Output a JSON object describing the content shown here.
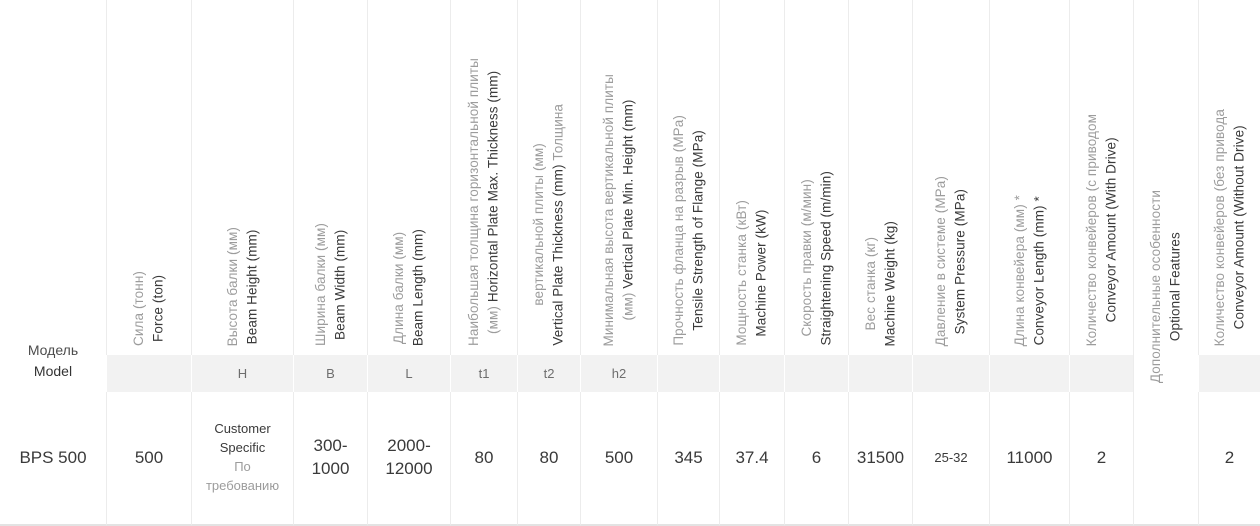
{
  "colors": {
    "ru_text": "#9c9c9c",
    "en_text": "#3a3a3a",
    "subheader_bg": "#f2f2f2",
    "column_border": "#ececec",
    "bottom_border": "#e3e3e3",
    "subheader_text": "#6e6e6e",
    "page_bg": "#ffffff"
  },
  "table": {
    "columns": [
      {
        "key": "model",
        "kind": "model",
        "ru": "Модель",
        "en": "Model"
      },
      {
        "key": "force",
        "kind": "rot",
        "sub": "",
        "lines": [
          [
            {
              "t": "Сила (тонн)",
              "c": "ru"
            }
          ],
          [
            {
              "t": "Force (ton)",
              "c": "en"
            }
          ]
        ]
      },
      {
        "key": "beam-height",
        "kind": "rot",
        "sub": "H",
        "lines": [
          [
            {
              "t": "Высота балки (мм)",
              "c": "ru"
            }
          ],
          [
            {
              "t": "Beam Height (mm)",
              "c": "en"
            }
          ]
        ]
      },
      {
        "key": "beam-width",
        "kind": "rot",
        "sub": "B",
        "lines": [
          [
            {
              "t": "Ширина балки (мм)",
              "c": "ru"
            }
          ],
          [
            {
              "t": "Beam Width (mm)",
              "c": "en"
            }
          ]
        ]
      },
      {
        "key": "beam-length",
        "kind": "rot",
        "sub": "L",
        "lines": [
          [
            {
              "t": "Длина балки (мм)",
              "c": "ru"
            }
          ],
          [
            {
              "t": "Beam Length (mm)",
              "c": "en"
            }
          ]
        ]
      },
      {
        "key": "horizontal-plate-max-thickness",
        "kind": "rot",
        "sub": "t1",
        "lines": [
          [
            {
              "t": "Наибольшая толщина горизонтальной плиты",
              "c": "ru"
            }
          ],
          [
            {
              "t": "(мм) ",
              "c": "ru"
            },
            {
              "t": "Horizontal Plate Max. Thickness (mm)",
              "c": "en"
            }
          ]
        ]
      },
      {
        "key": "vertical-plate-thickness",
        "kind": "rot",
        "sub": "t2",
        "lines": [
          [
            {
              "t": "вертикальной плиты (мм)",
              "c": "ru"
            }
          ],
          [
            {
              "t": "Vertical Plate Thickness (mm) ",
              "c": "en"
            },
            {
              "t": "Толщина",
              "c": "ru"
            }
          ]
        ]
      },
      {
        "key": "vertical-plate-min-height",
        "kind": "rot",
        "sub": "h2",
        "lines": [
          [
            {
              "t": "Минимальная высота вертикальной плиты",
              "c": "ru"
            }
          ],
          [
            {
              "t": "(мм) ",
              "c": "ru"
            },
            {
              "t": "Vertical Plate Min. Height (mm)",
              "c": "en"
            }
          ]
        ]
      },
      {
        "key": "tensile-strength",
        "kind": "rot",
        "sub": "",
        "lines": [
          [
            {
              "t": "Прочность фланца на разрыв (MPa)",
              "c": "ru"
            }
          ],
          [
            {
              "t": "Tensile Strength of Flange (MPa)",
              "c": "en"
            }
          ]
        ]
      },
      {
        "key": "machine-power",
        "kind": "rot",
        "sub": "",
        "lines": [
          [
            {
              "t": "Мощность станка (кВт)",
              "c": "ru"
            }
          ],
          [
            {
              "t": "Machine Power (kW)",
              "c": "en"
            }
          ]
        ]
      },
      {
        "key": "straightening-speed",
        "kind": "rot",
        "sub": "",
        "lines": [
          [
            {
              "t": "Скорость правки (м/мин)",
              "c": "ru"
            }
          ],
          [
            {
              "t": "Straightening Speed (m/min)",
              "c": "en"
            }
          ]
        ]
      },
      {
        "key": "machine-weight",
        "kind": "rot",
        "sub": "",
        "lines": [
          [
            {
              "t": "Вес станка (кг)",
              "c": "ru"
            }
          ],
          [
            {
              "t": "Machine Weight (kg)",
              "c": "en"
            }
          ]
        ]
      },
      {
        "key": "system-pressure",
        "kind": "rot",
        "sub": "",
        "lines": [
          [
            {
              "t": "Давление в системе (MPa)",
              "c": "ru"
            }
          ],
          [
            {
              "t": "System Pressure (MPa)",
              "c": "en"
            }
          ]
        ]
      },
      {
        "key": "conveyor-length",
        "kind": "rot",
        "sub": "",
        "lines": [
          [
            {
              "t": "Длина конвейера (мм) *",
              "c": "ru"
            }
          ],
          [
            {
              "t": "Conveyor Length (mm) *",
              "c": "en"
            }
          ]
        ]
      },
      {
        "key": "conveyor-amount-with-drive",
        "kind": "rot",
        "sub": "",
        "lines": [
          [
            {
              "t": "Количество конвейеров (с приводом",
              "c": "ru"
            }
          ],
          [
            {
              "t": "Conveyor Amount (With Drive)",
              "c": "en"
            }
          ]
        ]
      },
      {
        "key": "optional-features",
        "kind": "rot-span",
        "lines": [
          [
            {
              "t": "Дополнительные особенности",
              "c": "ru"
            }
          ],
          [
            {
              "t": "Optional Features",
              "c": "en"
            }
          ]
        ]
      },
      {
        "key": "conveyor-amount-without-drive",
        "kind": "rot",
        "sub": "",
        "lines": [
          [
            {
              "t": "Количество конвейеров (без привода",
              "c": "ru"
            }
          ],
          [
            {
              "t": "Conveyor Amount (Without Drive)",
              "c": "en"
            }
          ]
        ]
      }
    ],
    "rows": [
      {
        "cells": [
          {
            "text": "BPS 500"
          },
          {
            "text": "500"
          },
          {
            "lines": [
              {
                "t": "Customer Specific",
                "c": "en"
              },
              {
                "t": "По требованию",
                "c": "ru"
              }
            ]
          },
          {
            "text": "300-1000"
          },
          {
            "text": "2000-12000"
          },
          {
            "text": "80"
          },
          {
            "text": "80"
          },
          {
            "text": "500"
          },
          {
            "text": "345"
          },
          {
            "text": "37.4"
          },
          {
            "text": "6"
          },
          {
            "text": "31500"
          },
          {
            "text": "25-32",
            "small": true
          },
          {
            "text": "11000"
          },
          {
            "text": "2"
          },
          {
            "text": ""
          },
          {
            "text": "2"
          }
        ]
      }
    ]
  }
}
